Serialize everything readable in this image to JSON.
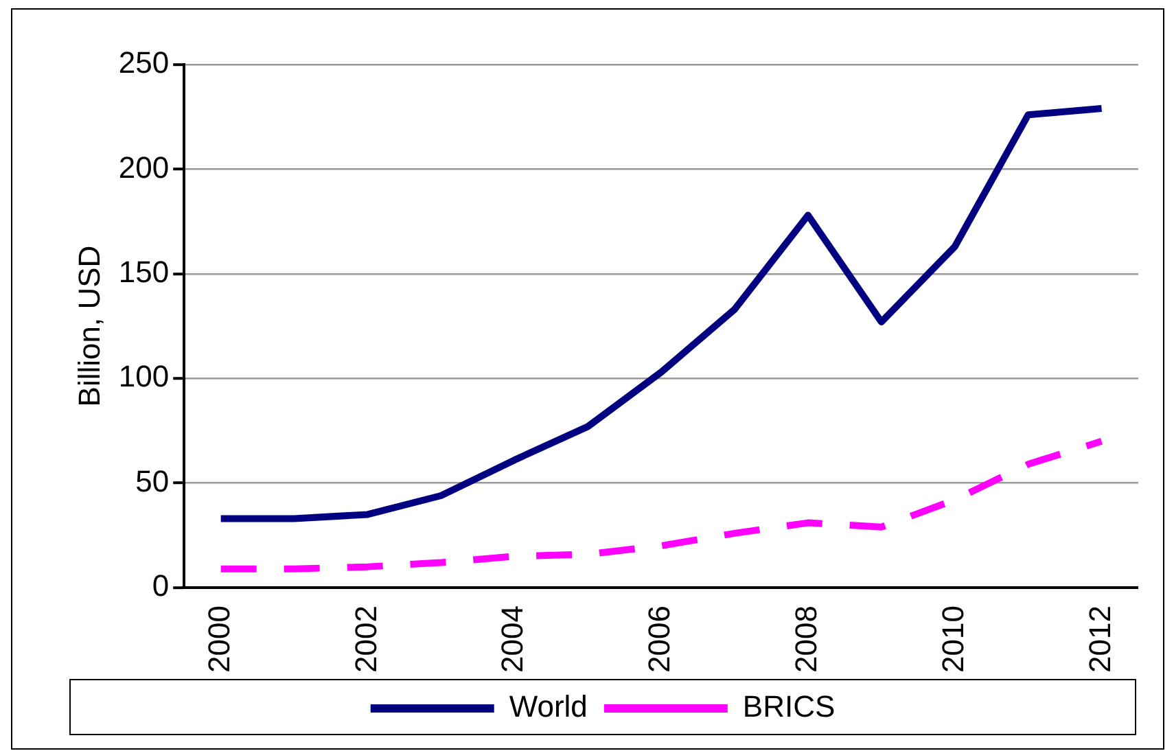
{
  "chart_data": {
    "type": "line",
    "ylabel": "Billion, USD",
    "categories": [
      "2000",
      null,
      "2002",
      null,
      "2004",
      null,
      "2006",
      null,
      "2008",
      null,
      "2010",
      null,
      "2012"
    ],
    "series": [
      {
        "name": "World",
        "color": "#000080",
        "line_style": "solid",
        "values": [
          33,
          33,
          35,
          44,
          61,
          77,
          103,
          133,
          178,
          127,
          163,
          226,
          229
        ]
      },
      {
        "name": "BRICS",
        "color": "#ff00ff",
        "line_style": "dashed",
        "values": [
          9,
          9,
          10,
          12,
          15,
          16,
          20,
          26,
          31,
          29,
          42,
          59,
          70
        ]
      }
    ],
    "ylim": [
      0,
      250
    ],
    "yticks": [
      0,
      50,
      100,
      150,
      200,
      250
    ],
    "grid": "y",
    "legend": "bottom",
    "marker": "none"
  }
}
